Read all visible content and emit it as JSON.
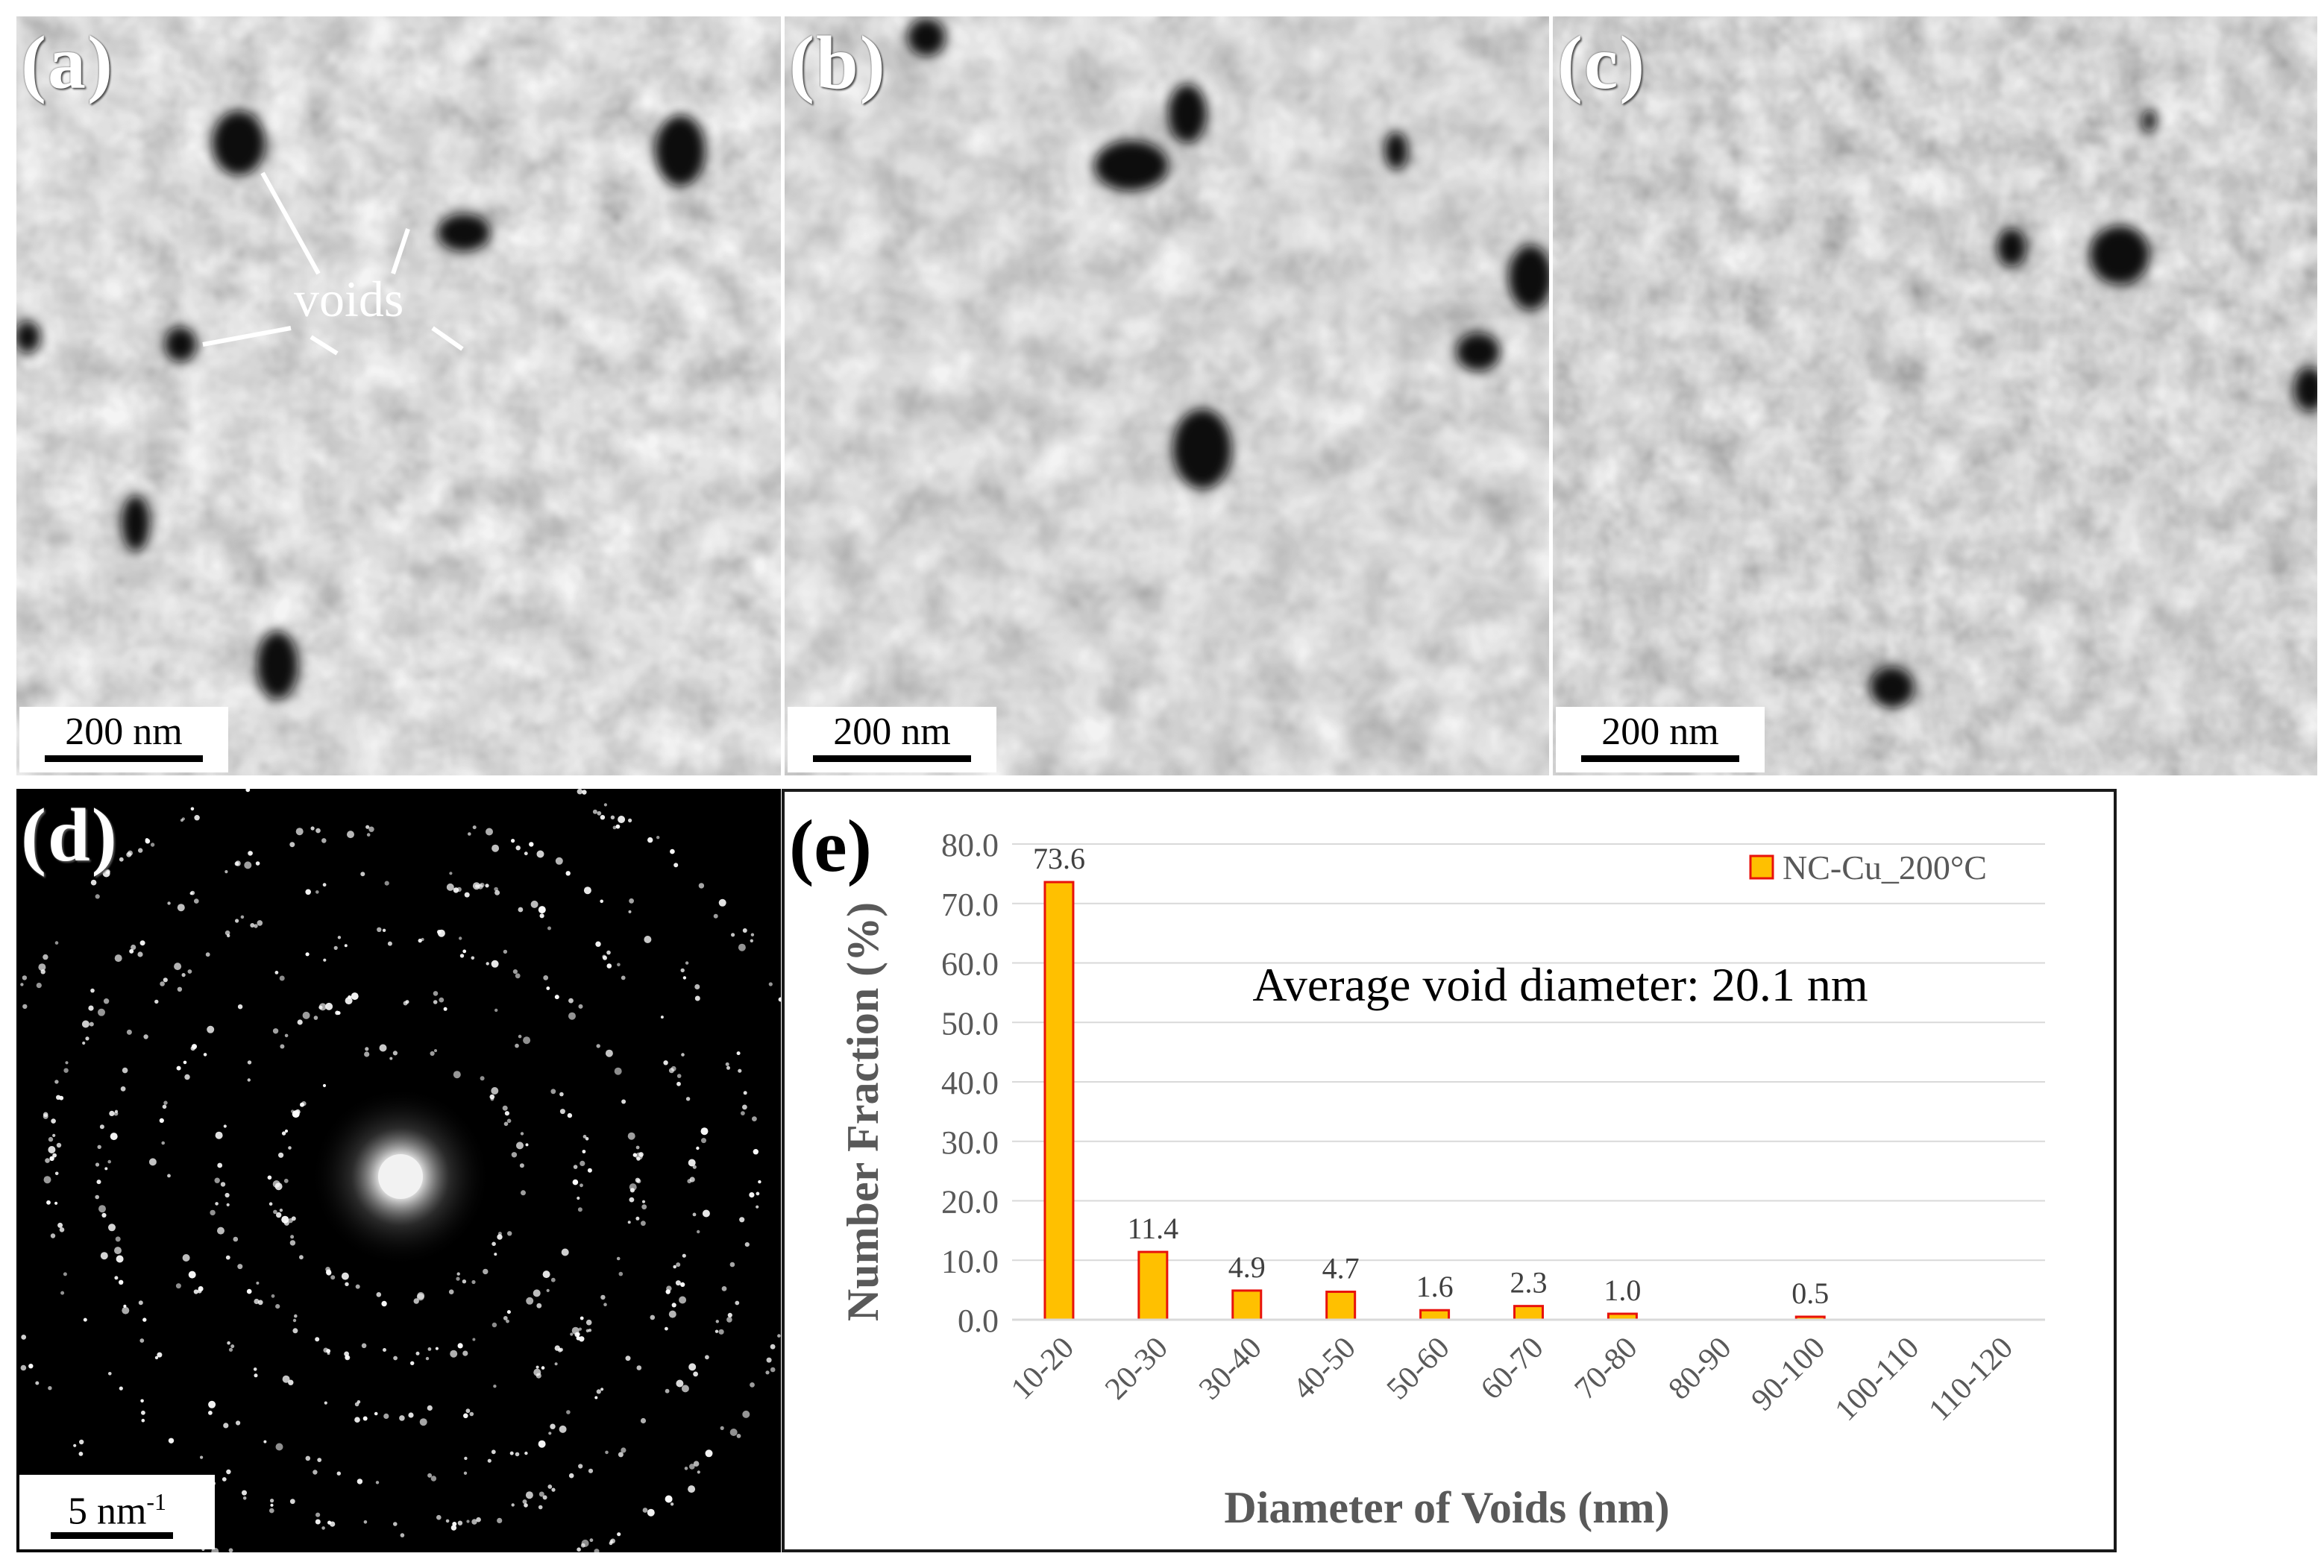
{
  "panels": {
    "a": {
      "label": "(a)",
      "scale_bar": "200 nm",
      "annotation": "voids"
    },
    "b": {
      "label": "(b)",
      "scale_bar": "200 nm"
    },
    "c": {
      "label": "(c)",
      "scale_bar": "200 nm"
    },
    "d": {
      "label": "(d)",
      "scale_bar": "5 nm",
      "scale_bar_sup": "-1"
    },
    "e": {
      "label": "(e)"
    }
  },
  "chart_data": {
    "type": "bar",
    "categories": [
      "10-20",
      "20-30",
      "30-40",
      "40-50",
      "50-60",
      "60-70",
      "70-80",
      "80-90",
      "90-100",
      "100-110",
      "110-120"
    ],
    "series": [
      {
        "name": "NC-Cu_200°C",
        "values": [
          73.6,
          11.4,
          4.9,
          4.7,
          1.6,
          2.3,
          1.0,
          null,
          0.5,
          null,
          null
        ],
        "labels": [
          "73.6",
          "11.4",
          "4.9",
          "4.7",
          "1.6",
          "2.3",
          "1.0",
          "",
          "0.5",
          "",
          ""
        ]
      }
    ],
    "ylabel": "Number Fraction (%)",
    "xlabel": "Diameter of Voids (nm)",
    "ylim": [
      0,
      80
    ],
    "yticks": [
      "0.0",
      "10.0",
      "20.0",
      "30.0",
      "40.0",
      "50.0",
      "60.0",
      "70.0",
      "80.0"
    ],
    "annotation": "Average void diameter: 20.1 nm",
    "legend_position": "top-right",
    "colors": {
      "bar_fill": "#FFC000",
      "bar_edge": "#E8120C",
      "gridline": "#d9d9d9",
      "axis_text": "#595959"
    }
  }
}
